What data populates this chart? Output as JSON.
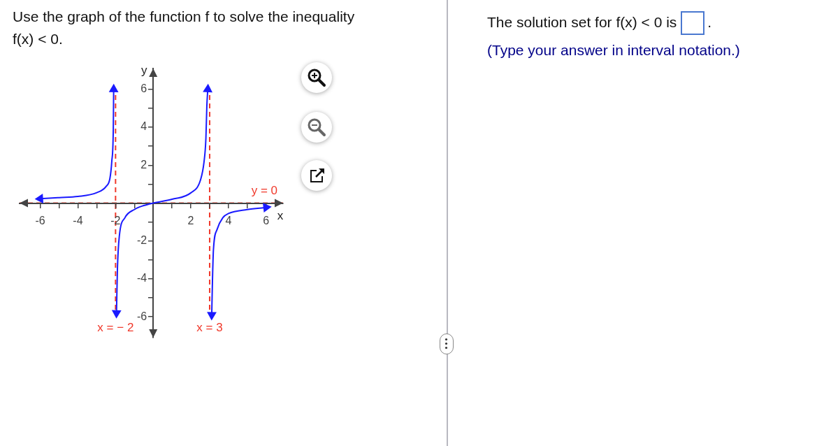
{
  "chart_data": {
    "type": "line",
    "title": "Use the graph of the function f to solve the inequality f(x) < 0.",
    "xlabel": "x",
    "ylabel": "y",
    "xlim": [
      -7.1,
      6.9
    ],
    "ylim": [
      -7.1,
      7.1
    ],
    "xticks": [
      -6,
      {
        "value": -5,
        "label": null
      },
      -4,
      {
        "value": -3,
        "label": null
      },
      -2,
      {
        "value": -1,
        "label": null
      },
      {
        "value": 1,
        "label": null
      },
      2,
      {
        "value": 3,
        "label": null
      },
      4,
      {
        "value": 5,
        "label": null
      },
      6
    ],
    "yticks": [
      -6,
      {
        "value": -5,
        "label": null
      },
      -4,
      {
        "value": -3,
        "label": null
      },
      -2,
      {
        "value": -1,
        "label": null
      },
      {
        "value": 1,
        "label": null
      },
      2,
      {
        "value": 3,
        "label": null
      },
      4,
      {
        "value": 5,
        "label": null
      },
      6
    ],
    "series": [
      {
        "color": "#1a1aff",
        "x": [
          -6,
          -5,
          -4,
          -3,
          -2.5,
          -2.3,
          -2.2,
          -2.12,
          -2.1
        ],
        "values": [
          0.23,
          0.29,
          0.35,
          0.55,
          0.88,
          1.3,
          2.2,
          3.9,
          6.0
        ]
      },
      {
        "color": "#1a1aff",
        "x": [
          -1.95,
          -1.9,
          -1.8,
          -1.5,
          -1,
          -0.5,
          0,
          1,
          2,
          2.5,
          2.7,
          2.8,
          2.85,
          2.9
        ],
        "values": [
          -5.8,
          -3.45,
          -1.75,
          -0.77,
          -0.34,
          -0.13,
          0,
          0.2,
          0.54,
          1.18,
          2.16,
          3.4,
          5.1,
          6.0
        ]
      },
      {
        "color": "#1a1aff",
        "x": [
          3.11,
          3.15,
          3.2,
          3.4,
          3.7,
          4,
          5,
          6
        ],
        "values": [
          -5.9,
          -4.07,
          -2.48,
          -1.38,
          -0.77,
          -0.55,
          -0.34,
          -0.23
        ]
      }
    ],
    "ref_lines": [
      {
        "axis": "x",
        "value": -2,
        "label": "x = − 2",
        "color": "#f0392b",
        "line_style": "dashed"
      },
      {
        "axis": "x",
        "value": 3,
        "label": "x = 3",
        "color": "#f0392b",
        "line_style": "dashed"
      },
      {
        "axis": "y",
        "value": 0,
        "label": "y = 0",
        "color": "#f0392b",
        "line_style": "dashed"
      }
    ],
    "annotations": [
      "The solution set for f(x) < 0 is",
      ".",
      "(Type your answer in interval notation.)"
    ]
  }
}
